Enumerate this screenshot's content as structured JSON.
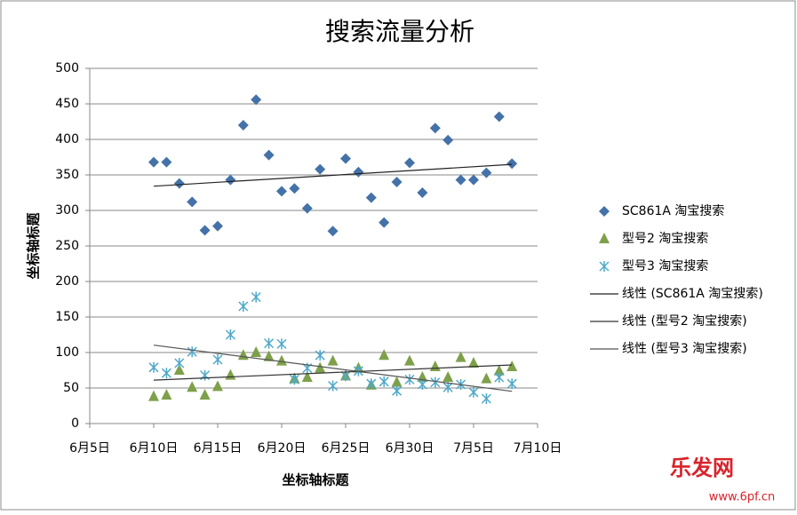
{
  "chart_data": {
    "type": "scatter",
    "title": "搜索流量分析",
    "x_label": "坐标轴标题",
    "y_label": "坐标轴标题",
    "x": [
      "6月10日",
      "6月11日",
      "6月12日",
      "6月13日",
      "6月14日",
      "6月15日",
      "6月16日",
      "6月17日",
      "6月18日",
      "6月19日",
      "6月20日",
      "6月21日",
      "6月22日",
      "6月23日",
      "6月24日",
      "6月25日",
      "6月26日",
      "6月27日",
      "6月28日",
      "6月29日",
      "6月30日",
      "7月1日",
      "7月2日",
      "7月3日",
      "7月4日",
      "7月5日",
      "7月6日",
      "7月7日",
      "7月8日"
    ],
    "series": [
      {
        "name": "SC861A 淘宝搜索",
        "color": "#4472a8",
        "marker": "diamond",
        "values": [
          368,
          368,
          338,
          312,
          272,
          278,
          343,
          420,
          456,
          378,
          327,
          331,
          303,
          358,
          271,
          373,
          354,
          318,
          283,
          340,
          367,
          325,
          416,
          399,
          343,
          343,
          353,
          432,
          366
        ],
        "trendline": {
          "type": "linear",
          "name": "线性 (SC861A 淘宝搜索)",
          "color": "#222222"
        }
      },
      {
        "name": "型号2 淘宝搜索",
        "color": "#7ea04a",
        "marker": "triangle",
        "values": [
          38,
          40,
          75,
          51,
          40,
          52,
          68,
          96,
          100,
          94,
          88,
          63,
          65,
          78,
          88,
          67,
          78,
          54,
          96,
          58,
          88,
          65,
          80,
          65,
          93,
          85,
          63,
          74,
          80
        ],
        "trendline": {
          "type": "linear",
          "name": "线性 (型号2 淘宝搜索)",
          "color": "#333333"
        }
      },
      {
        "name": "型号3 淘宝搜索",
        "color": "#4fa9c9",
        "marker": "star",
        "values": [
          79,
          71,
          85,
          101,
          68,
          90,
          125,
          165,
          178,
          113,
          112,
          62,
          78,
          96,
          53,
          67,
          74,
          56,
          59,
          46,
          62,
          55,
          58,
          51,
          55,
          44,
          35,
          65,
          56
        ],
        "trendline": {
          "type": "linear",
          "name": "线性 (型号3 淘宝搜索)",
          "color": "#555555"
        }
      }
    ],
    "xlim": [
      "6月5日",
      "7月10日"
    ],
    "xticks": [
      "6月5日",
      "6月10日",
      "6月15日",
      "6月20日",
      "6月25日",
      "6月30日",
      "7月5日",
      "7月10日"
    ],
    "ylim": [
      0,
      500
    ],
    "yticks": [
      0,
      50,
      100,
      150,
      200,
      250,
      300,
      350,
      400,
      450,
      500
    ],
    "grid": true,
    "legend": "right"
  },
  "watermark": {
    "text": "乐发网",
    "url": "www.6pf.cn"
  }
}
